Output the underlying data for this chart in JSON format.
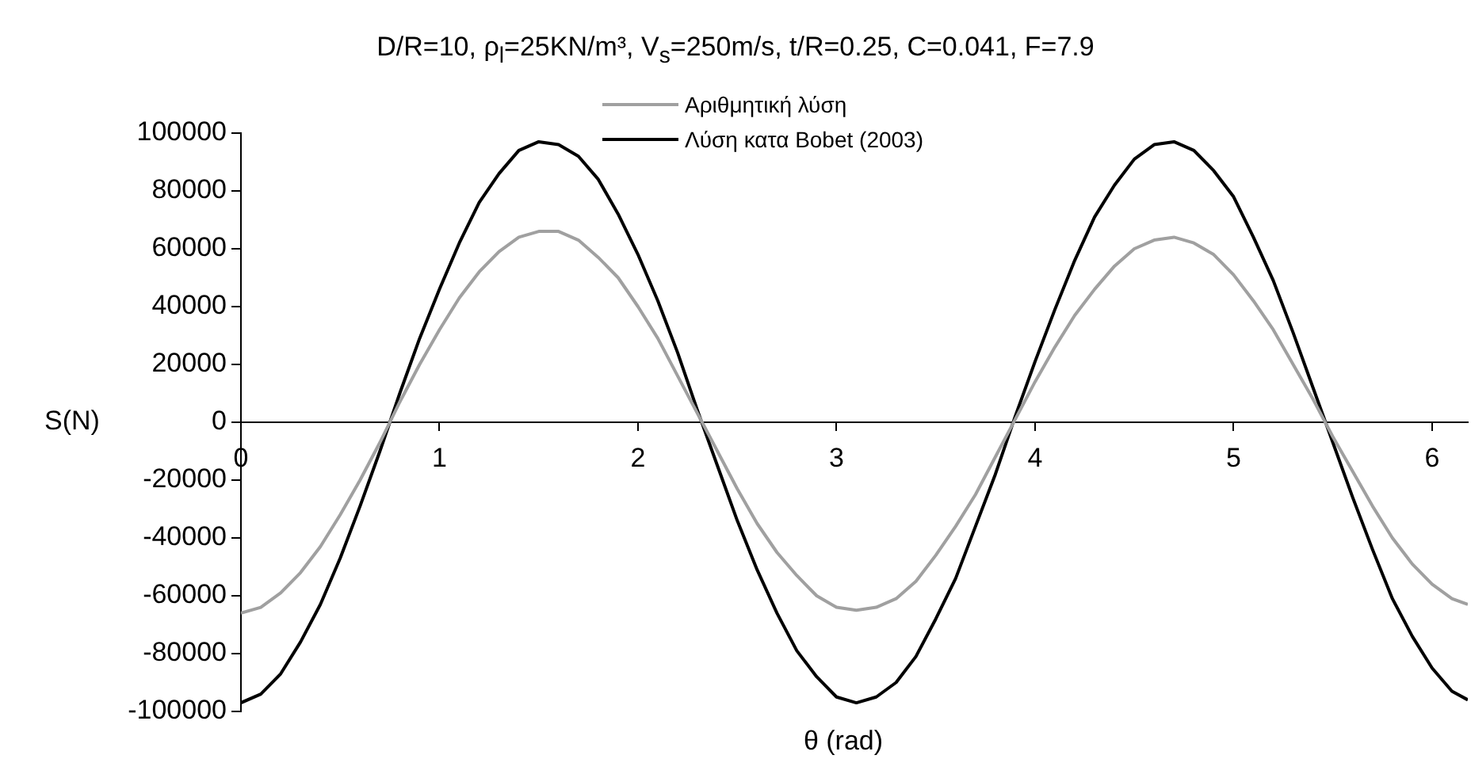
{
  "chart_data": {
    "type": "line",
    "title": "D/R=10, ρ$_{l}$=25KN/m³, V$_{s}$=250m/s, t/R=0.25, C=0.041, F=7.9",
    "xlabel": "θ (rad)",
    "ylabel": "S(N)",
    "x": [
      0,
      0.1,
      0.2,
      0.3,
      0.4,
      0.5,
      0.6,
      0.7,
      0.8,
      0.9,
      1.0,
      1.1,
      1.2,
      1.3,
      1.4,
      1.5,
      1.6,
      1.7,
      1.8,
      1.9,
      2.0,
      2.1,
      2.2,
      2.3,
      2.4,
      2.5,
      2.6,
      2.7,
      2.8,
      2.9,
      3.0,
      3.1,
      3.2,
      3.3,
      3.4,
      3.5,
      3.6,
      3.7,
      3.8,
      3.9,
      4.0,
      4.1,
      4.2,
      4.3,
      4.4,
      4.5,
      4.6,
      4.7,
      4.8,
      4.9,
      5.0,
      5.1,
      5.2,
      5.3,
      5.4,
      5.5,
      5.6,
      5.7,
      5.8,
      5.9,
      6.0,
      6.1,
      6.18
    ],
    "series": [
      {
        "name": "Αριθμητική λύση",
        "color": "#a0a0a0",
        "values": [
          -66000,
          -64000,
          -59000,
          -52000,
          -43000,
          -32000,
          -20000,
          -7000,
          7000,
          20000,
          32000,
          43000,
          52000,
          59000,
          64000,
          66000,
          66000,
          63000,
          57000,
          50000,
          40000,
          29000,
          16000,
          3000,
          -10000,
          -23000,
          -35000,
          -45000,
          -53000,
          -60000,
          -64000,
          -65000,
          -64000,
          -61000,
          -55000,
          -46000,
          -36000,
          -25000,
          -12000,
          1000,
          14000,
          26000,
          37000,
          46000,
          54000,
          60000,
          63000,
          64000,
          62000,
          58000,
          51000,
          42000,
          32000,
          20000,
          8000,
          -5000,
          -17000,
          -29000,
          -40000,
          -49000,
          -56000,
          -61000,
          -63000
        ]
      },
      {
        "name": "Λύση κατα Bobet (2003)",
        "color": "#000000",
        "values": [
          -97000,
          -94000,
          -87000,
          -76000,
          -63000,
          -47000,
          -29000,
          -10000,
          10000,
          29000,
          46000,
          62000,
          76000,
          86000,
          94000,
          97000,
          96000,
          92000,
          84000,
          72000,
          58000,
          42000,
          24000,
          4000,
          -15000,
          -34000,
          -51000,
          -66000,
          -79000,
          -88000,
          -95000,
          -97000,
          -95000,
          -90000,
          -81000,
          -68000,
          -54000,
          -36000,
          -18000,
          2000,
          21000,
          39000,
          56000,
          71000,
          82000,
          91000,
          96000,
          97000,
          94000,
          87000,
          78000,
          64000,
          49000,
          31000,
          12000,
          -7000,
          -26000,
          -44000,
          -61000,
          -74000,
          -85000,
          -93000,
          -96000
        ]
      }
    ],
    "xlim": [
      0,
      6.18
    ],
    "xticks": [
      0,
      1,
      2,
      3,
      4,
      5,
      6
    ],
    "ylim": [
      -100000,
      100000
    ],
    "yticks": [
      -100000,
      -80000,
      -60000,
      -40000,
      -20000,
      0,
      20000,
      40000,
      60000,
      80000,
      100000
    ],
    "grid": false,
    "legend": "top",
    "marker": "none"
  }
}
